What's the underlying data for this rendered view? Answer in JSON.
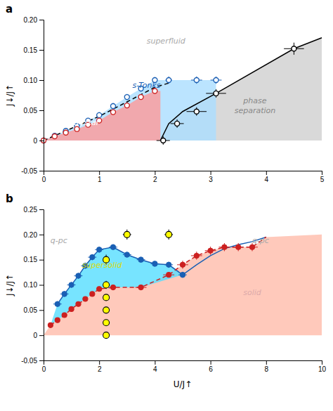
{
  "chart_data": [
    {
      "type": "scatter",
      "title": "a",
      "ylabel": "J↓/J↑",
      "xlim": [
        0,
        5
      ],
      "ylim": [
        -0.05,
        0.2
      ],
      "xticks": [
        0,
        1,
        2,
        3,
        4,
        5
      ],
      "yticks": [
        -0.05,
        0,
        0.05,
        {
          "value": 0.1,
          "label": "0.10"
        },
        0.15,
        {
          "value": 0.2,
          "label": "0.20"
        }
      ],
      "grid": false,
      "series": [
        {
          "type": "area",
          "color": "#d0d0d0",
          "x": [
            2.1,
            2.25,
            2.5,
            3.1,
            4.5,
            5.0,
            5.0,
            5.0,
            2.1
          ],
          "values": [
            0.0,
            0.028,
            0.048,
            0.078,
            0.152,
            0.17,
            0.2,
            0.0,
            0.0
          ]
        },
        {
          "type": "area",
          "color": "#aaddff",
          "x": [
            0.0,
            0.2,
            0.4,
            0.6,
            0.8,
            1.0,
            1.25,
            1.5,
            1.75,
            2.0,
            2.25,
            2.5,
            2.75,
            3.1,
            3.1,
            0.0
          ],
          "values": [
            0.0,
            0.008,
            0.016,
            0.024,
            0.033,
            0.042,
            0.057,
            0.072,
            0.086,
            0.1,
            0.1,
            0.1,
            0.1,
            0.1,
            0.0,
            0.0
          ]
        },
        {
          "type": "area",
          "color": "#ff9999",
          "x": [
            0.0,
            0.2,
            0.4,
            0.6,
            0.8,
            1.0,
            1.25,
            1.5,
            1.75,
            2.0,
            2.1,
            2.1,
            0.0
          ],
          "values": [
            0.0,
            0.007,
            0.013,
            0.019,
            0.026,
            0.033,
            0.047,
            0.058,
            0.072,
            0.082,
            0.082,
            0.0,
            0.0
          ]
        },
        {
          "type": "line",
          "color": "black",
          "line_style": "solid",
          "x": [
            2.1,
            2.25,
            2.5,
            3.1,
            4.5,
            5.0
          ],
          "values": [
            0.0,
            0.028,
            0.048,
            0.078,
            0.152,
            0.17
          ]
        },
        {
          "type": "line",
          "color": "black",
          "line_style": "dashed",
          "x": [
            0.0,
            0.5,
            1.0,
            1.5,
            2.0,
            2.25
          ],
          "values": [
            0.0,
            0.02,
            0.04,
            0.064,
            0.088,
            0.095
          ]
        },
        {
          "type": "scatter",
          "marker": "open-circle",
          "color": "#1a5fb4",
          "x": [
            0.0,
            0.2,
            0.4,
            0.6,
            0.8,
            1.0,
            1.25,
            1.5,
            1.75,
            2.0,
            2.25,
            2.75,
            3.1
          ],
          "values": [
            0.0,
            0.008,
            0.016,
            0.024,
            0.033,
            0.042,
            0.057,
            0.072,
            0.086,
            0.1,
            0.1,
            0.1,
            0.1
          ],
          "xerr": [
            0.0,
            0.0,
            0.0,
            0.0,
            0.0,
            0.04,
            0.04,
            0.04,
            0.04,
            0.04,
            0.06,
            0.1,
            0.1
          ],
          "yerr": [
            0.0,
            0.003,
            0.003,
            0.003,
            0.003,
            0.005,
            0.005,
            0.005,
            0.005,
            0.005,
            0.006,
            0.006,
            0.006
          ]
        },
        {
          "type": "scatter",
          "marker": "open-circle",
          "color": "#cc2020",
          "x": [
            0.0,
            0.2,
            0.4,
            0.6,
            0.8,
            1.0,
            1.25,
            1.5,
            1.75,
            2.0
          ],
          "values": [
            0.0,
            0.007,
            0.013,
            0.019,
            0.026,
            0.033,
            0.047,
            0.058,
            0.072,
            0.082
          ],
          "xerr": [
            0.0,
            0.0,
            0.0,
            0.0,
            0.0,
            0.04,
            0.04,
            0.04,
            0.04,
            0.04
          ],
          "yerr": [
            0.0,
            0.003,
            0.003,
            0.003,
            0.003,
            0.004,
            0.004,
            0.004,
            0.004,
            0.004
          ]
        },
        {
          "type": "scatter",
          "marker": "open-circle",
          "color": "black",
          "x": [
            2.15,
            2.4,
            2.75,
            3.1
          ],
          "values": [
            0.0,
            0.028,
            0.048,
            0.078
          ],
          "xerr": [
            0.12,
            0.12,
            0.18,
            0.18
          ],
          "yerr": [
            0.007,
            0.007,
            0.007,
            0.007
          ]
        },
        {
          "type": "scatter",
          "marker": "open-circle",
          "color": "black",
          "x": [
            4.5
          ],
          "values": [
            0.152
          ],
          "xerr": [
            0.18
          ],
          "yerr": [
            0.01
          ]
        }
      ],
      "annotations": [
        {
          "text": "superfluid",
          "x": 2.2,
          "y": 0.165,
          "color": "#aaaaaa"
        },
        {
          "text": "s-Tonks",
          "x": 1.85,
          "y": 0.092,
          "color": "#1a5fb4"
        },
        {
          "text": "trimer\ncrystal",
          "x": 0.75,
          "y": 0.038,
          "color": "#ffffff"
        },
        {
          "text": "phase\nseparation",
          "x": 3.8,
          "y": 0.058,
          "color": "#888888"
        }
      ]
    },
    {
      "type": "scatter",
      "title": "b",
      "xlabel": "U/J↑",
      "ylabel": "J↓/J↑",
      "xlim": [
        0,
        10
      ],
      "ylim": [
        -0.05,
        0.25
      ],
      "xticks": [
        0,
        2,
        4,
        6,
        8,
        10
      ],
      "yticks": [
        -0.05,
        0,
        0.05,
        {
          "value": 0.1,
          "label": "0.10"
        },
        0.15,
        {
          "value": 0.2,
          "label": "0.20"
        },
        0.25
      ],
      "grid": false,
      "series": [
        {
          "type": "area",
          "color": "#ffbbaa",
          "x": [
            0.0,
            0.25,
            0.5,
            0.75,
            1.0,
            1.25,
            1.5,
            1.75,
            2.0,
            2.5,
            3.5,
            4.5,
            5.0,
            5.5,
            6.0,
            6.5,
            7.0,
            7.5,
            8.0,
            10.0,
            10.0,
            0.0
          ],
          "values": [
            0.0,
            0.02,
            0.03,
            0.04,
            0.052,
            0.062,
            0.072,
            0.082,
            0.092,
            0.095,
            0.095,
            0.12,
            0.14,
            0.158,
            0.168,
            0.175,
            0.175,
            0.175,
            0.195,
            0.2,
            0.0,
            0.0
          ]
        },
        {
          "type": "area",
          "color": "#55ddff",
          "x": [
            0.5,
            0.75,
            1.0,
            1.25,
            1.5,
            1.75,
            2.0,
            2.5,
            3.0,
            3.5,
            4.0,
            4.5,
            5.0,
            3.5,
            2.5,
            2.0,
            1.75,
            1.5,
            1.25,
            1.0,
            0.75,
            0.5,
            0.25
          ],
          "values": [
            0.062,
            0.082,
            0.1,
            0.118,
            0.138,
            0.155,
            0.17,
            0.175,
            0.16,
            0.15,
            0.142,
            0.14,
            0.12,
            0.095,
            0.095,
            0.092,
            0.082,
            0.072,
            0.062,
            0.052,
            0.04,
            0.03,
            0.02
          ]
        },
        {
          "type": "line",
          "color": "#1a5fb4",
          "line_style": "solid",
          "x": [
            0.5,
            0.75,
            1.0,
            1.25,
            1.5,
            1.75,
            2.0,
            2.5,
            3.0,
            3.5,
            4.0,
            4.5,
            5.0,
            5.5,
            6.0,
            6.5,
            7.0,
            7.5,
            8.0
          ],
          "values": [
            0.062,
            0.082,
            0.1,
            0.118,
            0.138,
            0.155,
            0.17,
            0.175,
            0.16,
            0.15,
            0.142,
            0.14,
            0.12,
            0.14,
            0.158,
            0.172,
            0.18,
            0.186,
            0.195
          ]
        },
        {
          "type": "line",
          "color": "#cc2020",
          "line_style": "dashed",
          "x": [
            0.25,
            0.5,
            0.75,
            1.0,
            1.25,
            1.5,
            1.75,
            2.0,
            2.5,
            3.5,
            4.5,
            5.0,
            5.5,
            6.0,
            6.5,
            7.0,
            7.5,
            8.0
          ],
          "values": [
            0.02,
            0.03,
            0.04,
            0.052,
            0.062,
            0.072,
            0.082,
            0.092,
            0.095,
            0.095,
            0.12,
            0.14,
            0.158,
            0.168,
            0.175,
            0.175,
            0.175,
            0.195
          ]
        },
        {
          "type": "scatter",
          "marker": "circle",
          "color": "#1a5fb4",
          "x": [
            0.5,
            0.75,
            1.0,
            1.25,
            1.5,
            1.75,
            2.0,
            2.5,
            3.0,
            3.5,
            4.0,
            4.5,
            5.0
          ],
          "values": [
            0.062,
            0.082,
            0.1,
            0.118,
            0.138,
            0.155,
            0.17,
            0.175,
            0.16,
            0.15,
            0.142,
            0.14,
            0.12
          ],
          "xerr": [
            0.15,
            0.15,
            0.15,
            0.15,
            0.15,
            0.15,
            0.15,
            0.15,
            0.15,
            0.15,
            0.15,
            0.15,
            0.15
          ],
          "yerr": [
            0.006,
            0.006,
            0.006,
            0.006,
            0.006,
            0.006,
            0.006,
            0.006,
            0.006,
            0.006,
            0.006,
            0.006,
            0.006
          ]
        },
        {
          "type": "scatter",
          "marker": "circle",
          "color": "#cc2020",
          "x": [
            0.25,
            0.5,
            0.75,
            1.0,
            1.25,
            1.5,
            1.75,
            2.0,
            2.5,
            3.5,
            4.5,
            5.0,
            5.5,
            6.0,
            6.5,
            7.0,
            7.5
          ],
          "values": [
            0.02,
            0.03,
            0.04,
            0.052,
            0.062,
            0.072,
            0.082,
            0.092,
            0.095,
            0.095,
            0.12,
            0.14,
            0.158,
            0.168,
            0.175,
            0.175,
            0.175
          ],
          "xerr": [
            0.1,
            0.1,
            0.1,
            0.1,
            0.1,
            0.1,
            0.1,
            0.1,
            0.1,
            0.2,
            0.2,
            0.2,
            0.2,
            0.2,
            0.2,
            0.2,
            0.2
          ],
          "yerr": [
            0.005,
            0.005,
            0.005,
            0.005,
            0.005,
            0.005,
            0.005,
            0.005,
            0.005,
            0.005,
            0.005,
            0.008,
            0.008,
            0.008,
            0.008,
            0.008,
            0.008
          ]
        },
        {
          "type": "scatter",
          "marker": "edged-circle",
          "color": "yellow",
          "x": [
            2.25,
            2.25,
            2.25,
            2.25,
            2.25,
            2.25,
            3.0,
            4.5
          ],
          "values": [
            0.0,
            0.025,
            0.05,
            0.075,
            0.1,
            0.15,
            0.2,
            0.2
          ],
          "xerr": [
            0.1,
            0.1,
            0.1,
            0.1,
            0.1,
            0.1,
            0.15,
            0.15
          ],
          "yerr": [
            0.005,
            0.005,
            0.005,
            0.005,
            0.008,
            0.01,
            0.01,
            0.01
          ]
        }
      ],
      "annotations": [
        {
          "text": "supersolid",
          "x": 2.1,
          "y": 0.14,
          "color": "#dddd00"
        },
        {
          "text": "solid",
          "x": 7.5,
          "y": 0.085,
          "color": "#ddaaaa"
        },
        {
          "text": "q-pc",
          "x": 0.55,
          "y": 0.188,
          "color": "#aaaaaa"
        },
        {
          "text": "q-pc",
          "x": 7.8,
          "y": 0.188,
          "color": "#aaaaaa"
        }
      ]
    }
  ]
}
